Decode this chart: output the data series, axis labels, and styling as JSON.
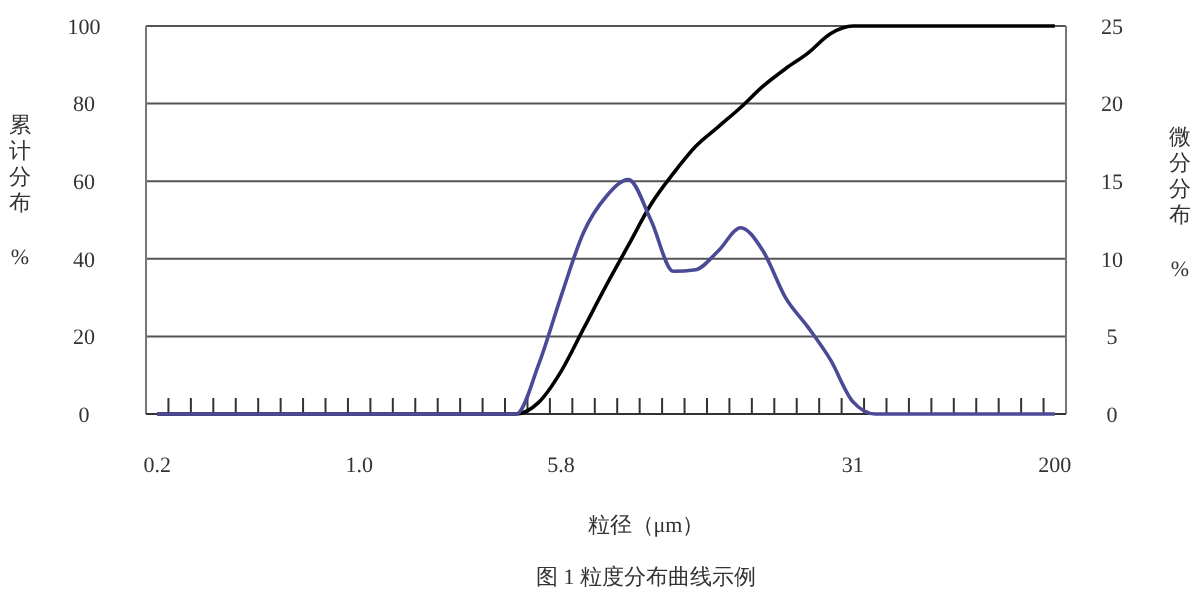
{
  "chart_data": {
    "type": "line",
    "title": "图 1 粒度分布曲线示例",
    "xlabel": "粒径（μm）",
    "ylabel": "累计分布 %",
    "y2label": "微分分布 %",
    "categories": [
      "0.2",
      null,
      null,
      null,
      null,
      null,
      null,
      null,
      null,
      "1.0",
      null,
      null,
      null,
      null,
      null,
      null,
      null,
      null,
      "5.8",
      null,
      null,
      null,
      null,
      null,
      null,
      null,
      null,
      null,
      null,
      null,
      null,
      "31",
      null,
      null,
      null,
      null,
      null,
      null,
      null,
      null,
      "200"
    ],
    "series": [
      {
        "color": "#000000",
        "values": [
          0,
          0,
          0,
          0,
          0,
          0,
          0,
          0,
          0,
          0,
          0,
          0,
          0,
          0,
          0,
          0,
          0,
          3,
          11,
          22,
          33,
          43.5,
          54,
          62,
          69,
          74,
          79,
          84.5,
          89,
          93,
          98,
          100,
          100,
          100,
          100,
          100,
          100,
          100,
          100,
          100,
          100
        ]
      },
      {
        "color": "#4a4a96",
        "axis": "y2",
        "values": [
          0,
          0,
          0,
          0,
          0,
          0,
          0,
          0,
          0,
          0,
          0,
          0,
          0,
          0,
          0,
          0,
          0,
          3.2,
          7.6,
          11.7,
          14,
          15.1,
          12.5,
          9.2,
          9.3,
          10.5,
          12,
          10.5,
          7.5,
          5.6,
          3.5,
          0.8,
          0,
          0,
          0,
          0,
          0,
          0,
          0,
          0,
          0
        ]
      }
    ],
    "ylim": [
      0,
      100
    ],
    "yticks": [
      0,
      20,
      40,
      60,
      80,
      100
    ],
    "y2lim": [
      0,
      25
    ],
    "y2ticks": [
      0,
      5,
      10,
      15,
      20,
      25
    ],
    "grid": "y",
    "line_style": "solid",
    "marker": "none"
  }
}
